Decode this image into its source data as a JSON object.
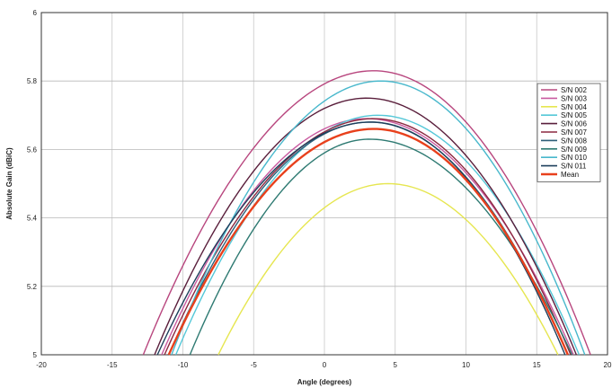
{
  "chart_data": {
    "type": "line",
    "title": "",
    "xlabel": "Angle (degrees)",
    "ylabel": "Absolute Gain (dBiC)",
    "xlim": [
      -20,
      20
    ],
    "ylim": [
      5,
      6
    ],
    "xticks": [
      "-20",
      "-15",
      "-10",
      "-5",
      "0",
      "5",
      "10",
      "15",
      "20"
    ],
    "yticks": [
      "5",
      "5.2",
      "5.4",
      "5.6",
      "5.8",
      "6"
    ],
    "grid": true,
    "legend_position": "right",
    "series": [
      {
        "name": "S/N 002",
        "color": "#b8467e",
        "peak_x": 3.5,
        "peak_y": 5.83,
        "base_left": -12.8,
        "base_right": 18.8
      },
      {
        "name": "S/N 003",
        "color": "#c95aa0",
        "peak_x": 3.0,
        "peak_y": 5.69,
        "base_left": -11.5,
        "base_right": 17.6
      },
      {
        "name": "S/N 004",
        "color": "#e6e650",
        "peak_x": 4.5,
        "peak_y": 5.5,
        "base_left": -7.5,
        "base_right": 16.5
      },
      {
        "name": "S/N 005",
        "color": "#55c8d8",
        "peak_x": 3.8,
        "peak_y": 5.7,
        "base_left": -10.5,
        "base_right": 18.0
      },
      {
        "name": "S/N 006",
        "color": "#5a1f3c",
        "peak_x": 3.0,
        "peak_y": 5.75,
        "base_left": -12.0,
        "base_right": 17.8
      },
      {
        "name": "S/N 007",
        "color": "#8c2840",
        "peak_x": 3.5,
        "peak_y": 5.69,
        "base_left": -11.3,
        "base_right": 17.4
      },
      {
        "name": "S/N 008",
        "color": "#2e5f78",
        "peak_x": 3.2,
        "peak_y": 5.68,
        "base_left": -11.0,
        "base_right": 17.2
      },
      {
        "name": "S/N 009",
        "color": "#2e7a72",
        "peak_x": 3.2,
        "peak_y": 5.63,
        "base_left": -9.5,
        "base_right": 17.5
      },
      {
        "name": "S/N 010",
        "color": "#48b8cc",
        "peak_x": 4.0,
        "peak_y": 5.8,
        "base_left": -10.8,
        "base_right": 18.4
      },
      {
        "name": "S/N 011",
        "color": "#1e3f5c",
        "peak_x": 3.3,
        "peak_y": 5.68,
        "base_left": -11.8,
        "base_right": 17.0
      },
      {
        "name": "Mean",
        "color": "#e8401c",
        "peak_x": 3.5,
        "peak_y": 5.66,
        "base_left": -11.0,
        "base_right": 17.2
      }
    ]
  }
}
